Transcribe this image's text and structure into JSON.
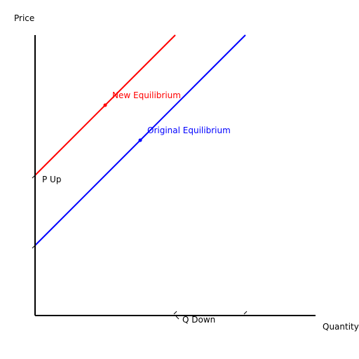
{
  "chart_data": {
    "type": "line",
    "xlabel": "Quantity",
    "ylabel": "Price",
    "xlim": [
      0,
      400
    ],
    "ylim": [
      0,
      400
    ],
    "grid": false,
    "legend": "none",
    "series": [
      {
        "color": "#ff0000",
        "x": [
          0,
          200
        ],
        "y": [
          200,
          400
        ]
      },
      {
        "color": "#0000ff",
        "x": [
          0,
          300
        ],
        "y": [
          100,
          400
        ]
      }
    ],
    "points": [
      {
        "label": "New Equilibrium",
        "x": 100,
        "y": 300,
        "color": "#ff0000"
      },
      {
        "label": "Original Equilibrium",
        "x": 150,
        "y": 250,
        "color": "#0000ff"
      }
    ],
    "annotations": [
      {
        "text": "P Up",
        "x": 0,
        "y": 200
      },
      {
        "text": "Q Down",
        "x": 200,
        "y": 0
      }
    ]
  }
}
